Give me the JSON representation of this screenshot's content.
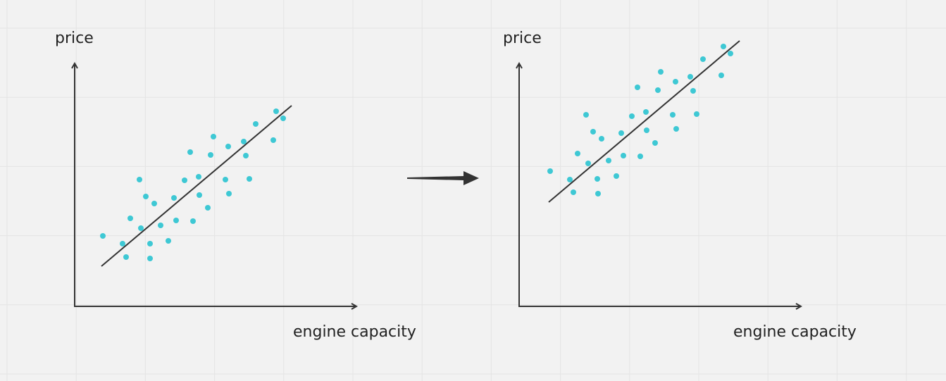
{
  "left_chart": {
    "y_label": "price",
    "x_label": "engine capacity"
  },
  "right_chart": {
    "y_label": "price",
    "x_label": "engine capacity"
  }
}
